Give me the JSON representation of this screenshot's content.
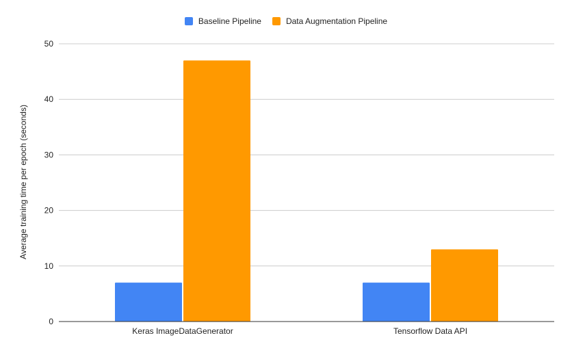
{
  "chart_data": {
    "type": "bar",
    "categories": [
      "Keras ImageDataGenerator",
      "Tensorflow Data API"
    ],
    "series": [
      {
        "name": "Baseline Pipeline",
        "values": [
          7,
          7
        ],
        "color": "#4285f4"
      },
      {
        "name": "Data Augmentation Pipeline",
        "values": [
          47,
          13
        ],
        "color": "#ff9900"
      }
    ],
    "title": "",
    "xlabel": "",
    "ylabel": "Average training time per epoch (seconds)",
    "ylim": [
      0,
      50
    ],
    "yticks": [
      "0",
      "10",
      "20",
      "30",
      "40",
      "50"
    ],
    "grid": true,
    "legend_position": "top-center"
  }
}
